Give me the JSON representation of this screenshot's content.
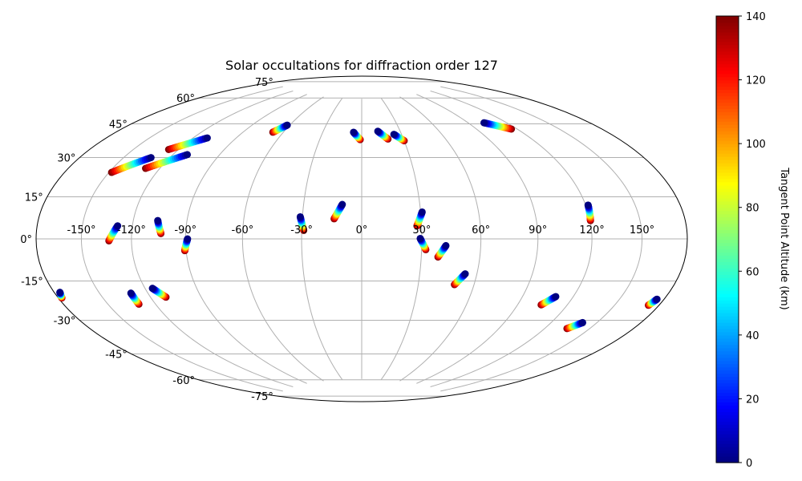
{
  "chart_data": {
    "type": "scatter",
    "projection": "hammer",
    "title": "Solar occultations for diffraction order 127",
    "colorbar": {
      "label": "Tangent Point Altitude (km)",
      "min": 0,
      "max": 140,
      "ticks": [
        0,
        20,
        40,
        60,
        80,
        100,
        120,
        140
      ],
      "tick_labels": [
        "0",
        "20",
        "40",
        "60",
        "80",
        "100",
        "120",
        "140"
      ],
      "colormap": "jet"
    },
    "lon_ticks": [
      {
        "value": -150,
        "label": "-150°"
      },
      {
        "value": -120,
        "label": "-120°"
      },
      {
        "value": -90,
        "label": "-90°"
      },
      {
        "value": -60,
        "label": "-60°"
      },
      {
        "value": -30,
        "label": "-30°"
      },
      {
        "value": 0,
        "label": "0°"
      },
      {
        "value": 30,
        "label": "30°"
      },
      {
        "value": 60,
        "label": "60°"
      },
      {
        "value": 90,
        "label": "90°"
      },
      {
        "value": 120,
        "label": "120°"
      },
      {
        "value": 150,
        "label": "150°"
      }
    ],
    "lat_ticks": [
      {
        "value": 75,
        "label": "75°"
      },
      {
        "value": 60,
        "label": "60°"
      },
      {
        "value": 45,
        "label": "45°"
      },
      {
        "value": 30,
        "label": "30°"
      },
      {
        "value": 15,
        "label": "15°"
      },
      {
        "value": 0,
        "label": "0°"
      },
      {
        "value": -15,
        "label": "-15°"
      },
      {
        "value": -30,
        "label": "-30°"
      },
      {
        "value": -45,
        "label": "-45°"
      },
      {
        "value": -60,
        "label": "-60°"
      },
      {
        "value": -75,
        "label": "-75°"
      }
    ],
    "tracks": [
      {
        "from": [
          -126.5,
          39.6
        ],
        "to": [
          -110.2,
          47.0
        ]
      },
      {
        "from": [
          -128.9,
          30.5
        ],
        "to": [
          -110.7,
          38.5
        ]
      },
      {
        "from": [
          -148.3,
          27.1
        ],
        "to": [
          -132.1,
          35.2
        ]
      },
      {
        "from": [
          -67.9,
          53.3
        ],
        "to": [
          -62.1,
          57.6
        ]
      },
      {
        "from": [
          -1.1,
          51.1
        ],
        "to": [
          -6.3,
          55.2
        ]
      },
      {
        "from": [
          18.9,
          51.3
        ],
        "to": [
          12.6,
          55.7
        ]
      },
      {
        "from": [
          30.0,
          50.1
        ],
        "to": [
          24.3,
          53.8
        ]
      },
      {
        "from": [
          115.8,
          51.2
        ],
        "to": [
          102.6,
          56.0
        ]
      },
      {
        "from": [
          -103.5,
          2.4
        ],
        "to": [
          -106.1,
          8.2
        ]
      },
      {
        "from": [
          -133.2,
          -0.8
        ],
        "to": [
          -128.6,
          5.5
        ]
      },
      {
        "from": [
          -90.7,
          -5.4
        ],
        "to": [
          -88.9,
          0.0
        ]
      },
      {
        "from": [
          -29.0,
          4.2
        ],
        "to": [
          -31.1,
          10.9
        ]
      },
      {
        "from": [
          -13.9,
          10.0
        ],
        "to": [
          -10.0,
          17.2
        ]
      },
      {
        "from": [
          27.7,
          6.4
        ],
        "to": [
          30.8,
          13.3
        ]
      },
      {
        "from": [
          32.1,
          -5.3
        ],
        "to": [
          29.2,
          0.2
        ]
      },
      {
        "from": [
          38.5,
          -8.9
        ],
        "to": [
          42.2,
          -3.3
        ]
      },
      {
        "from": [
          120.2,
          7.9
        ],
        "to": [
          121.4,
          14.6
        ]
      },
      {
        "from": [
          -110.7,
          -26.1
        ],
        "to": [
          -115.6,
          -21.8
        ]
      },
      {
        "from": [
          -130.3,
          -28.0
        ],
        "to": [
          -130.3,
          -23.1
        ]
      },
      {
        "from": [
          -177.5,
          -21.5
        ],
        "to": [
          -176.0,
          -19.5
        ]
      },
      {
        "from": [
          49.4,
          -22.4
        ],
        "to": [
          53.8,
          -17.0
        ]
      },
      {
        "from": [
          104.1,
          -30.1
        ],
        "to": [
          109.5,
          -25.9
        ]
      },
      {
        "from": [
          134.8,
          -38.9
        ],
        "to": [
          140.5,
          -35.5
        ]
      },
      {
        "from": [
          172.6,
          -24.8
        ],
        "to": [
          175.0,
          -22.2
        ]
      }
    ]
  }
}
